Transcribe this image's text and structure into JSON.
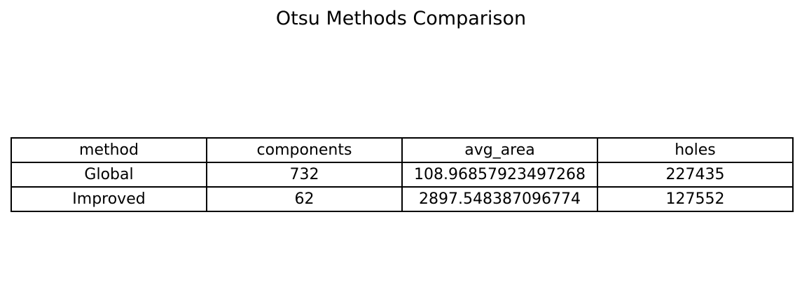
{
  "chart_data": {
    "type": "table",
    "title": "Otsu Methods Comparison",
    "columns": [
      "method",
      "components",
      "avg_area",
      "holes"
    ],
    "rows": [
      [
        "Global",
        "732",
        "108.96857923497268",
        "227435"
      ],
      [
        "Improved",
        "62",
        "2897.548387096774",
        "127552"
      ]
    ]
  }
}
